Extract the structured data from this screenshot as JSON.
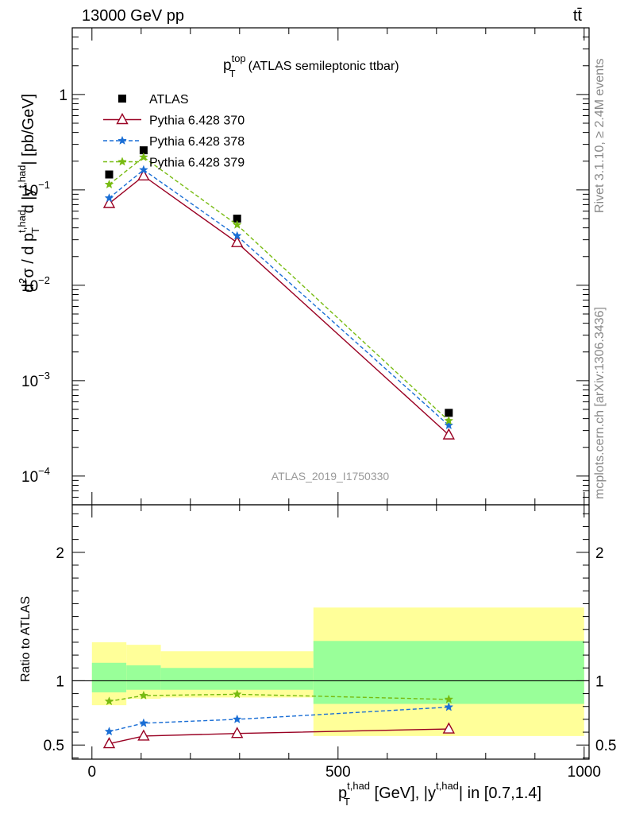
{
  "header": {
    "left": "13000 GeV pp",
    "right": "tt̄"
  },
  "side_labels": {
    "rivet": "Rivet 3.1.10, ≥ 2.4M events",
    "mcplots": "mcplots.cern.ch [arXiv:1306.3436]"
  },
  "colors": {
    "atlas": "#000000",
    "py370": "#990022",
    "py378": "#1a6ed5",
    "py379": "#77bb11",
    "band_inner": "#99ff99",
    "band_outer": "#ffff99"
  },
  "chart_data": [
    {
      "type": "line",
      "title_main": "p",
      "title_sup": "top",
      "title_sub": "T",
      "title_rest": "(ATLAS semileptonic ttbar)",
      "watermark": "ATLAS_2019_I1750330",
      "ylabel": "d²σ / d p_T^{t,had} d |y^{t,had}| [pb/GeV]",
      "yscale": "log",
      "ylim": [
        5e-05,
        5
      ],
      "xlim": [
        -40,
        1010
      ],
      "y_ticks": [
        {
          "value": 1,
          "label": "1"
        },
        {
          "value": 0.1,
          "label": "10",
          "sup": "−1"
        },
        {
          "value": 0.01,
          "label": "10",
          "sup": "−2"
        },
        {
          "value": 0.001,
          "label": "10",
          "sup": "−3"
        },
        {
          "value": 0.0001,
          "label": "10",
          "sup": "−4"
        }
      ],
      "legend_position": "top-left",
      "x": [
        35,
        105,
        295,
        725
      ],
      "series": [
        {
          "name": "ATLAS",
          "style": "markers",
          "color": "#000000",
          "values": [
            0.145,
            0.26,
            0.05,
            0.00046
          ]
        },
        {
          "name": "Pythia 6.428 370",
          "style": "solid",
          "marker": "open-triangle",
          "color": "#990022",
          "values": [
            0.072,
            0.14,
            0.028,
            0.00027
          ]
        },
        {
          "name": "Pythia 6.428 378",
          "style": "dashed",
          "marker": "star",
          "color": "#1a6ed5",
          "values": [
            0.082,
            0.162,
            0.033,
            0.00034
          ]
        },
        {
          "name": "Pythia 6.428 379",
          "style": "dashed",
          "marker": "star",
          "color": "#77bb11",
          "values": [
            0.114,
            0.22,
            0.043,
            0.00038
          ]
        }
      ]
    },
    {
      "type": "line",
      "ylabel": "Ratio to ATLAS",
      "ylim": [
        0.39,
        2.37
      ],
      "xlim": [
        -40,
        1010
      ],
      "y_ticks": [
        {
          "value": 0.5,
          "label": "0.5"
        },
        {
          "value": 1,
          "label": "1"
        },
        {
          "value": 2,
          "label": "2"
        }
      ],
      "x_ticks": [
        {
          "value": 0,
          "label": "0"
        },
        {
          "value": 500,
          "label": "500"
        },
        {
          "value": 1000,
          "label": "1000"
        }
      ],
      "xlabel_main": "p",
      "xlabel_sup": "t,had",
      "xlabel_sub": "T",
      "xlabel_mid": " [GeV], |y",
      "xlabel_sup2": "t,had",
      "xlabel_end": "| in [0.7,1.4]",
      "bins": [
        {
          "lo": 0,
          "hi": 70,
          "inner_lo": 0.91,
          "inner_hi": 1.14,
          "outer_lo": 0.81,
          "outer_hi": 1.3
        },
        {
          "lo": 70,
          "hi": 140,
          "inner_lo": 0.93,
          "inner_hi": 1.12,
          "outer_lo": 0.86,
          "outer_hi": 1.28
        },
        {
          "lo": 140,
          "hi": 450,
          "inner_lo": 0.93,
          "inner_hi": 1.1,
          "outer_lo": 0.87,
          "outer_hi": 1.23
        },
        {
          "lo": 450,
          "hi": 1000,
          "inner_lo": 0.82,
          "inner_hi": 1.31,
          "outer_lo": 0.57,
          "outer_hi": 1.57
        }
      ],
      "x": [
        35,
        105,
        295,
        725
      ],
      "series": [
        {
          "name": "Pythia 6.428 370",
          "color": "#990022",
          "style": "solid",
          "marker": "open-triangle",
          "values": [
            0.51,
            0.57,
            0.59,
            0.625
          ]
        },
        {
          "name": "Pythia 6.428 378",
          "color": "#1a6ed5",
          "style": "dashed",
          "marker": "star",
          "values": [
            0.605,
            0.67,
            0.7,
            0.795
          ]
        },
        {
          "name": "Pythia 6.428 379",
          "color": "#77bb11",
          "style": "dashed",
          "marker": "star",
          "values": [
            0.84,
            0.885,
            0.895,
            0.855
          ]
        }
      ]
    }
  ]
}
